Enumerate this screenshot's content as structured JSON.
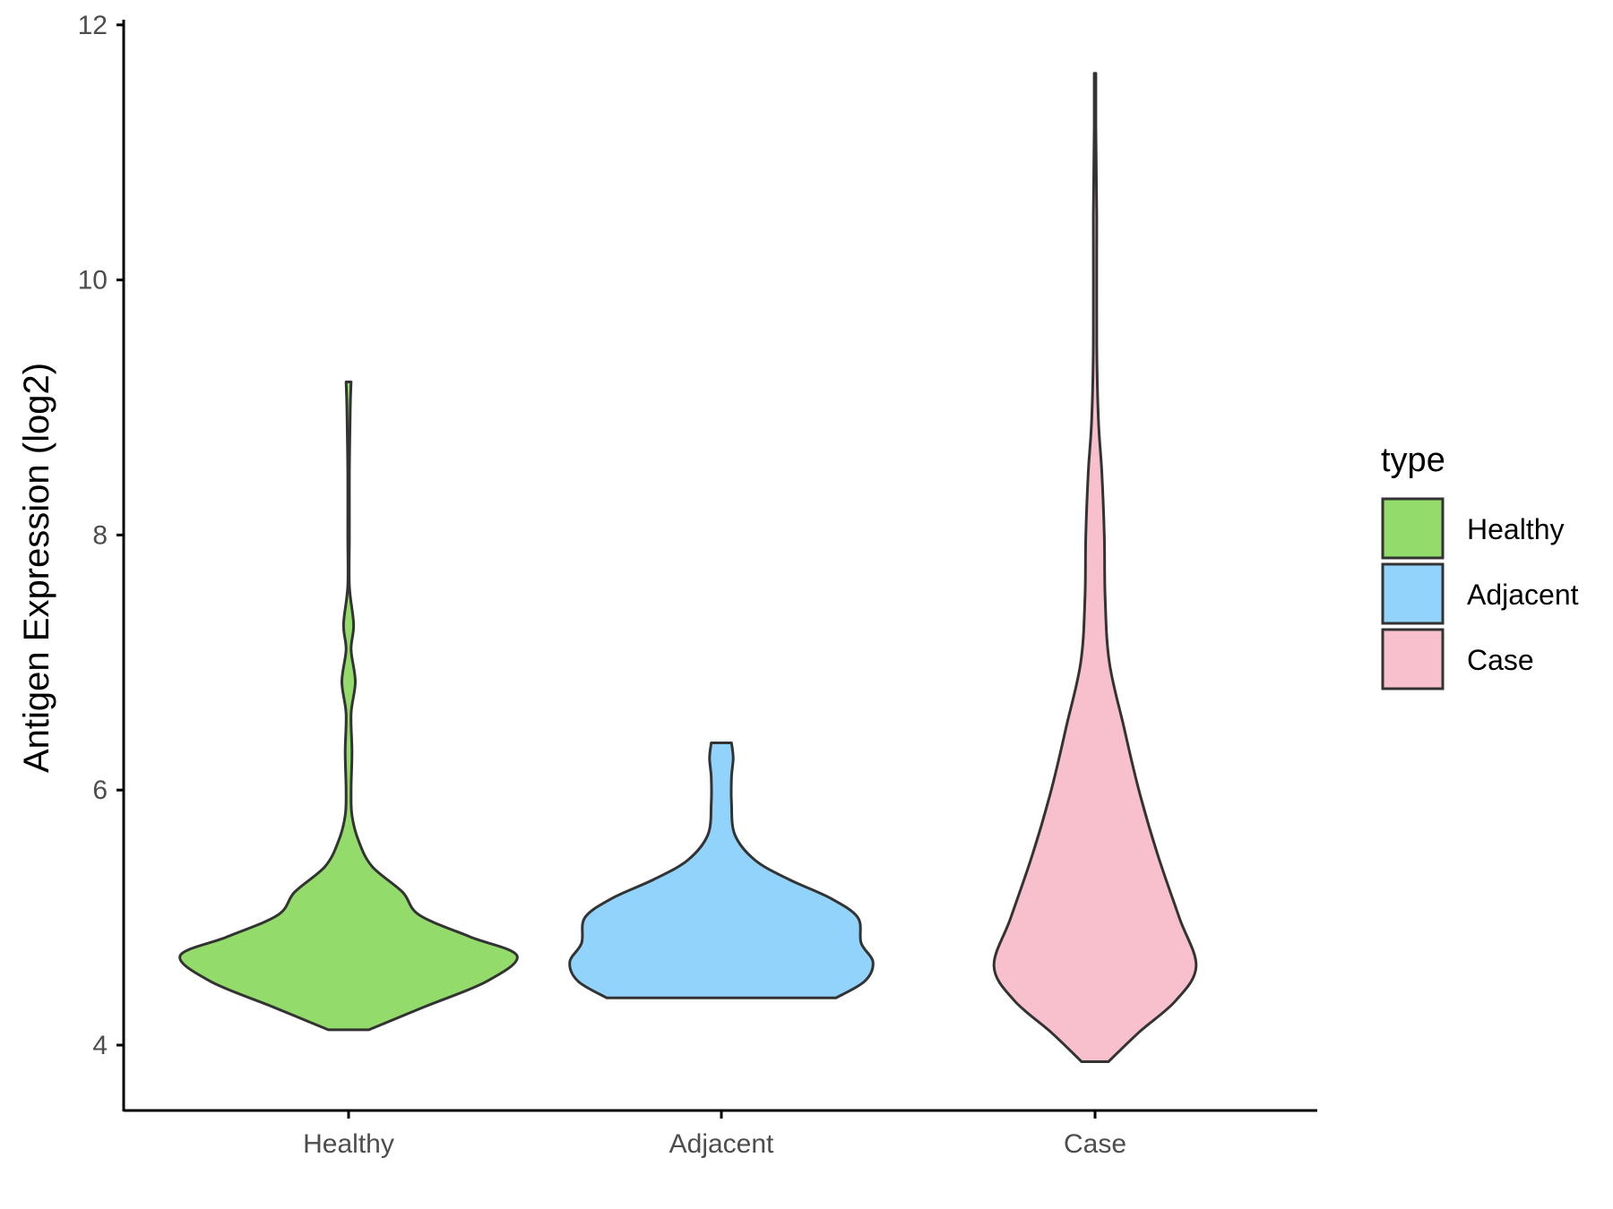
{
  "chart_data": {
    "type": "violin",
    "xlabel": "",
    "ylabel": "Antigen Expression (log2)",
    "ylim": [
      3.5,
      12
    ],
    "y_ticks": [
      4,
      6,
      8,
      10,
      12
    ],
    "grid": false,
    "legend": {
      "title": "type",
      "placement": "right"
    },
    "categories": [
      "Healthy",
      "Adjacent",
      "Case"
    ],
    "series": [
      {
        "name": "Healthy",
        "color": "#93DB6A",
        "min": 4.12,
        "max": 9.2,
        "density": [
          [
            4.12,
            0.12
          ],
          [
            4.3,
            0.45
          ],
          [
            4.5,
            0.82
          ],
          [
            4.7,
            1.0
          ],
          [
            4.85,
            0.72
          ],
          [
            5.02,
            0.42
          ],
          [
            5.2,
            0.32
          ],
          [
            5.4,
            0.14
          ],
          [
            5.6,
            0.06
          ],
          [
            5.8,
            0.02
          ],
          [
            6.0,
            0.015
          ],
          [
            6.3,
            0.02
          ],
          [
            6.6,
            0.015
          ],
          [
            6.85,
            0.04
          ],
          [
            7.1,
            0.015
          ],
          [
            7.3,
            0.03
          ],
          [
            7.6,
            0.005
          ],
          [
            8.0,
            0.005
          ],
          [
            8.5,
            0.005
          ],
          [
            9.0,
            0.01
          ],
          [
            9.2,
            0.015
          ]
        ]
      },
      {
        "name": "Adjacent",
        "color": "#92D3FC",
        "min": 4.37,
        "max": 6.37,
        "density": [
          [
            4.37,
            0.68
          ],
          [
            4.5,
            0.85
          ],
          [
            4.65,
            0.9
          ],
          [
            4.8,
            0.83
          ],
          [
            5.0,
            0.81
          ],
          [
            5.15,
            0.65
          ],
          [
            5.3,
            0.4
          ],
          [
            5.45,
            0.2
          ],
          [
            5.65,
            0.08
          ],
          [
            5.9,
            0.06
          ],
          [
            6.1,
            0.06
          ],
          [
            6.25,
            0.07
          ],
          [
            6.37,
            0.06
          ]
        ]
      },
      {
        "name": "Case",
        "color": "#F7C0CC",
        "min": 3.87,
        "max": 11.62,
        "density": [
          [
            3.87,
            0.08
          ],
          [
            4.1,
            0.26
          ],
          [
            4.35,
            0.48
          ],
          [
            4.62,
            0.6
          ],
          [
            5.0,
            0.5
          ],
          [
            5.5,
            0.37
          ],
          [
            6.0,
            0.26
          ],
          [
            6.5,
            0.17
          ],
          [
            7.0,
            0.085
          ],
          [
            7.5,
            0.06
          ],
          [
            8.0,
            0.055
          ],
          [
            8.5,
            0.04
          ],
          [
            8.9,
            0.02
          ],
          [
            9.5,
            0.01
          ],
          [
            10.5,
            0.01
          ],
          [
            11.2,
            0.005
          ],
          [
            11.62,
            0.005
          ]
        ]
      }
    ]
  }
}
